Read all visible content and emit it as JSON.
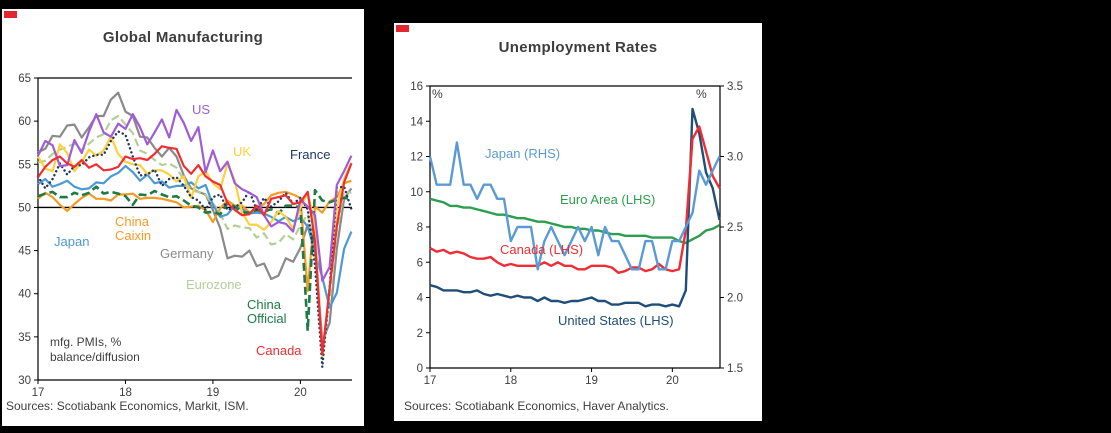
{
  "page": {
    "background": "#000000"
  },
  "brand": {
    "accent_red": "#e4272e"
  },
  "chart_data": [
    {
      "type": "line",
      "title": "Global Manufacturing",
      "note": "mfg. PMIs, %\nbalance/diffusion",
      "source": "Sources: Scotiabank Economics, Markit, ISM.",
      "x_unit": "year (monthly points, Jan 2017 - Aug 2020)",
      "xlim": [
        17,
        20.59
      ],
      "ylim_left": [
        30,
        65
      ],
      "yticks_left": [
        65,
        60,
        55,
        50,
        45,
        40,
        35,
        30
      ],
      "xticks": [
        17,
        18,
        19,
        20
      ],
      "reference_line": 50,
      "frame": [
        "left",
        "bottom",
        "top"
      ],
      "legend_position": "inline-annotations",
      "grid": false,
      "series": [
        {
          "name": "Germany",
          "color": "#8a8a8a",
          "style": "solid",
          "width": 2.2,
          "values": [
            56.4,
            56.8,
            58.3,
            58.2,
            59.5,
            59.6,
            58.1,
            59.3,
            60.6,
            60.6,
            62.5,
            63.3,
            61.1,
            60.6,
            58.2,
            58.1,
            56.9,
            55.9,
            56.9,
            55.9,
            53.7,
            52.2,
            51.8,
            51.5,
            49.7,
            47.6,
            44.1,
            44.4,
            44.3,
            45.0,
            43.2,
            43.5,
            41.7,
            42.1,
            44.1,
            43.7,
            45.3,
            48.0,
            45.4,
            34.5,
            36.6,
            45.2,
            51.0,
            52.2
          ]
        },
        {
          "name": "Eurozone",
          "color": "#b4cf96",
          "style": "dashed",
          "width": 2.2,
          "values": [
            55.2,
            55.4,
            56.2,
            56.7,
            57.0,
            57.4,
            56.6,
            57.4,
            58.1,
            58.5,
            60.1,
            60.6,
            59.6,
            58.6,
            56.6,
            56.2,
            55.5,
            54.9,
            55.1,
            54.6,
            53.2,
            52.0,
            51.8,
            51.4,
            50.5,
            49.3,
            47.5,
            47.9,
            47.7,
            47.6,
            46.5,
            47.0,
            45.7,
            45.9,
            46.9,
            46.3,
            47.9,
            49.2,
            44.5,
            33.4,
            39.4,
            47.4,
            51.8,
            51.7
          ]
        },
        {
          "name": "Japan",
          "color": "#4a9ad4",
          "style": "solid",
          "width": 2.2,
          "values": [
            52.7,
            53.3,
            52.4,
            52.7,
            53.1,
            52.4,
            52.1,
            52.2,
            52.9,
            52.8,
            53.6,
            54.0,
            54.8,
            54.1,
            53.1,
            53.8,
            52.8,
            53.0,
            52.3,
            52.5,
            52.5,
            52.9,
            52.2,
            52.6,
            50.3,
            48.9,
            49.2,
            50.2,
            49.8,
            49.3,
            49.4,
            49.3,
            48.9,
            48.4,
            48.9,
            48.4,
            48.8,
            47.8,
            44.8,
            41.9,
            38.4,
            40.1,
            45.2,
            47.2
          ]
        },
        {
          "name": "China Caixin",
          "color": "#f59b22",
          "style": "solid",
          "width": 2.2,
          "values": [
            51.0,
            51.7,
            51.2,
            50.3,
            49.6,
            50.4,
            51.1,
            51.6,
            51.0,
            51.0,
            50.8,
            51.5,
            51.5,
            51.6,
            51.0,
            51.1,
            51.1,
            51.0,
            50.8,
            50.6,
            50.0,
            50.1,
            50.2,
            49.7,
            48.3,
            49.9,
            50.8,
            50.2,
            50.2,
            49.4,
            49.9,
            50.4,
            51.4,
            51.7,
            51.8,
            51.5,
            51.1,
            40.3,
            50.1,
            49.4,
            50.7,
            51.2,
            52.8,
            53.1
          ]
        },
        {
          "name": "China Official",
          "color": "#1e7a46",
          "style": "dashed",
          "width": 2.6,
          "values": [
            51.3,
            51.6,
            51.8,
            51.2,
            51.2,
            51.7,
            51.4,
            51.7,
            52.4,
            51.6,
            51.8,
            51.6,
            51.3,
            50.3,
            51.5,
            51.4,
            51.9,
            51.5,
            51.2,
            51.3,
            50.8,
            50.2,
            50.0,
            49.4,
            49.5,
            49.2,
            50.5,
            50.1,
            49.4,
            49.4,
            49.7,
            49.5,
            49.8,
            49.3,
            50.2,
            50.2,
            50.0,
            35.7,
            52.0,
            50.8,
            50.6,
            50.9,
            51.1,
            51.0
          ]
        },
        {
          "name": "UK",
          "color": "#fdd03c",
          "style": "solid",
          "width": 2.2,
          "values": [
            55.9,
            54.5,
            54.2,
            57.3,
            56.3,
            54.2,
            55.3,
            56.7,
            56.0,
            56.6,
            58.2,
            56.2,
            55.3,
            55.0,
            54.9,
            53.9,
            54.3,
            54.3,
            53.8,
            53.0,
            53.6,
            51.1,
            53.6,
            54.2,
            52.8,
            52.1,
            55.1,
            53.1,
            49.4,
            48.0,
            48.0,
            47.4,
            48.3,
            49.6,
            48.9,
            47.5,
            50.0,
            51.7,
            47.8,
            32.6,
            40.7,
            50.1,
            53.3,
            55.2
          ]
        },
        {
          "name": "France",
          "color": "#1f3864",
          "style": "dotted",
          "width": 2.4,
          "values": [
            53.6,
            52.2,
            53.3,
            55.1,
            53.8,
            54.8,
            54.9,
            55.8,
            56.1,
            56.1,
            57.7,
            58.8,
            58.4,
            55.9,
            53.7,
            53.8,
            54.4,
            52.5,
            53.3,
            53.5,
            52.5,
            51.2,
            50.8,
            49.7,
            51.2,
            51.5,
            49.7,
            50.0,
            50.6,
            51.9,
            49.7,
            51.1,
            50.1,
            50.7,
            51.7,
            50.4,
            51.1,
            49.8,
            43.2,
            31.5,
            40.6,
            52.3,
            52.4,
            49.8
          ]
        },
        {
          "name": "US",
          "color": "#a05cd6",
          "style": "solid",
          "width": 2.2,
          "values": [
            56.0,
            57.7,
            57.2,
            54.8,
            54.9,
            57.8,
            56.3,
            58.8,
            60.8,
            58.7,
            58.2,
            59.7,
            59.1,
            60.8,
            59.3,
            57.3,
            58.7,
            60.2,
            58.1,
            61.3,
            59.8,
            57.7,
            59.3,
            54.1,
            56.6,
            54.2,
            55.3,
            52.8,
            52.1,
            51.7,
            51.2,
            49.1,
            47.8,
            48.3,
            48.1,
            47.2,
            50.9,
            50.1,
            49.1,
            41.5,
            43.1,
            52.6,
            54.2,
            56.0
          ]
        },
        {
          "name": "Canada",
          "color": "#ee2e34",
          "style": "solid",
          "width": 2.2,
          "values": [
            53.5,
            54.7,
            55.5,
            55.9,
            55.1,
            54.7,
            55.5,
            54.6,
            55.0,
            54.3,
            54.4,
            54.7,
            55.9,
            55.6,
            55.7,
            55.5,
            56.2,
            57.1,
            56.9,
            56.8,
            54.8,
            53.9,
            54.9,
            53.6,
            53.0,
            52.6,
            50.5,
            49.7,
            49.1,
            49.2,
            50.2,
            49.1,
            51.0,
            51.2,
            51.4,
            50.4,
            50.6,
            51.8,
            46.1,
            33.0,
            40.6,
            47.8,
            52.9,
            55.1
          ]
        }
      ],
      "annotations": [
        {
          "text": "US",
          "color": "#a05cd6"
        },
        {
          "text": "UK",
          "color": "#fdd03c"
        },
        {
          "text": "France",
          "color": "#1f3864"
        },
        {
          "text": "Japan",
          "color": "#4a9ad4"
        },
        {
          "text": "China\nCaixin",
          "color": "#f59b22"
        },
        {
          "text": "Germany",
          "color": "#8a8a8a"
        },
        {
          "text": "Eurozone",
          "color": "#b4cf96"
        },
        {
          "text": "China\nOfficial",
          "color": "#1e7a46"
        },
        {
          "text": "Canada",
          "color": "#ee2e34"
        }
      ]
    },
    {
      "type": "line",
      "title": "Unemployment Rates",
      "source": "Sources: Scotiabank Economics, Haver Analytics.",
      "x_unit": "year (monthly points, Jan 2017 - Aug 2020)",
      "xlim": [
        17,
        20.59
      ],
      "ylim_left": [
        0,
        16
      ],
      "ylim_right": [
        1.5,
        3.5
      ],
      "yticks_left": [
        16,
        14,
        12,
        10,
        8,
        6,
        4,
        2,
        0
      ],
      "yticks_right": [
        "3.5",
        "3.0",
        "2.5",
        "2.0",
        "1.5"
      ],
      "xticks": [
        17,
        18,
        19,
        20
      ],
      "axis_unit_left": "%",
      "axis_unit_right": "%",
      "frame": [
        "left",
        "right",
        "top",
        "bottom"
      ],
      "legend_position": "inline-annotations",
      "grid": false,
      "series": [
        {
          "name": "Euro Area (LHS)",
          "axis": "left",
          "color": "#2d9e4e",
          "style": "solid",
          "width": 2.4,
          "values": [
            9.6,
            9.5,
            9.4,
            9.2,
            9.2,
            9.1,
            9.1,
            9.0,
            8.9,
            8.8,
            8.7,
            8.7,
            8.6,
            8.5,
            8.5,
            8.4,
            8.3,
            8.3,
            8.2,
            8.1,
            8.0,
            8.0,
            7.9,
            7.9,
            7.8,
            7.8,
            7.7,
            7.6,
            7.6,
            7.5,
            7.5,
            7.5,
            7.5,
            7.4,
            7.4,
            7.4,
            7.4,
            7.2,
            7.1,
            7.3,
            7.5,
            7.8,
            7.9,
            8.1
          ]
        },
        {
          "name": "United States (LHS)",
          "axis": "left",
          "color": "#1f4e79",
          "style": "solid",
          "width": 2.4,
          "values": [
            4.7,
            4.6,
            4.4,
            4.4,
            4.4,
            4.3,
            4.3,
            4.4,
            4.2,
            4.1,
            4.2,
            4.1,
            4.0,
            4.1,
            4.0,
            4.0,
            3.8,
            4.0,
            3.8,
            3.8,
            3.7,
            3.8,
            3.8,
            3.9,
            4.0,
            3.8,
            3.8,
            3.6,
            3.6,
            3.7,
            3.7,
            3.7,
            3.5,
            3.6,
            3.6,
            3.5,
            3.6,
            3.5,
            4.4,
            14.7,
            13.3,
            11.1,
            10.2,
            8.4
          ]
        },
        {
          "name": "Canada (LHS)",
          "axis": "left",
          "color": "#ee2e34",
          "style": "solid",
          "width": 2.4,
          "values": [
            6.8,
            6.6,
            6.7,
            6.5,
            6.6,
            6.5,
            6.3,
            6.2,
            6.2,
            6.3,
            6.0,
            5.8,
            5.9,
            5.8,
            5.8,
            5.8,
            5.8,
            6.0,
            5.8,
            6.0,
            5.8,
            5.8,
            5.6,
            5.6,
            5.8,
            5.8,
            5.8,
            5.7,
            5.4,
            5.5,
            5.7,
            5.7,
            5.5,
            5.6,
            5.9,
            5.6,
            5.5,
            5.6,
            7.8,
            13.0,
            13.7,
            12.3,
            10.9,
            10.2
          ]
        },
        {
          "name": "Japan (RHS)",
          "axis": "right",
          "color": "#5b9bd5",
          "style": "solid",
          "width": 2.4,
          "values": [
            3.0,
            2.8,
            2.8,
            2.8,
            3.1,
            2.8,
            2.8,
            2.7,
            2.8,
            2.8,
            2.7,
            2.7,
            2.4,
            2.5,
            2.5,
            2.5,
            2.2,
            2.4,
            2.5,
            2.4,
            2.3,
            2.4,
            2.5,
            2.4,
            2.5,
            2.3,
            2.5,
            2.4,
            2.4,
            2.3,
            2.2,
            2.2,
            2.4,
            2.4,
            2.2,
            2.2,
            2.4,
            2.4,
            2.5,
            2.6,
            2.9,
            2.8,
            2.9,
            3.0
          ]
        }
      ],
      "annotations": [
        {
          "text": "Japan (RHS)",
          "color": "#5b9bd5"
        },
        {
          "text": "Euro Area (LHS)",
          "color": "#2d9e4e"
        },
        {
          "text": "Canada (LHS)",
          "color": "#ee2e34"
        },
        {
          "text": "United States (LHS)",
          "color": "#1f4e79"
        },
        {
          "text": "%",
          "color": "#3f3f3f"
        },
        {
          "text": "%",
          "color": "#3f3f3f"
        }
      ]
    }
  ]
}
